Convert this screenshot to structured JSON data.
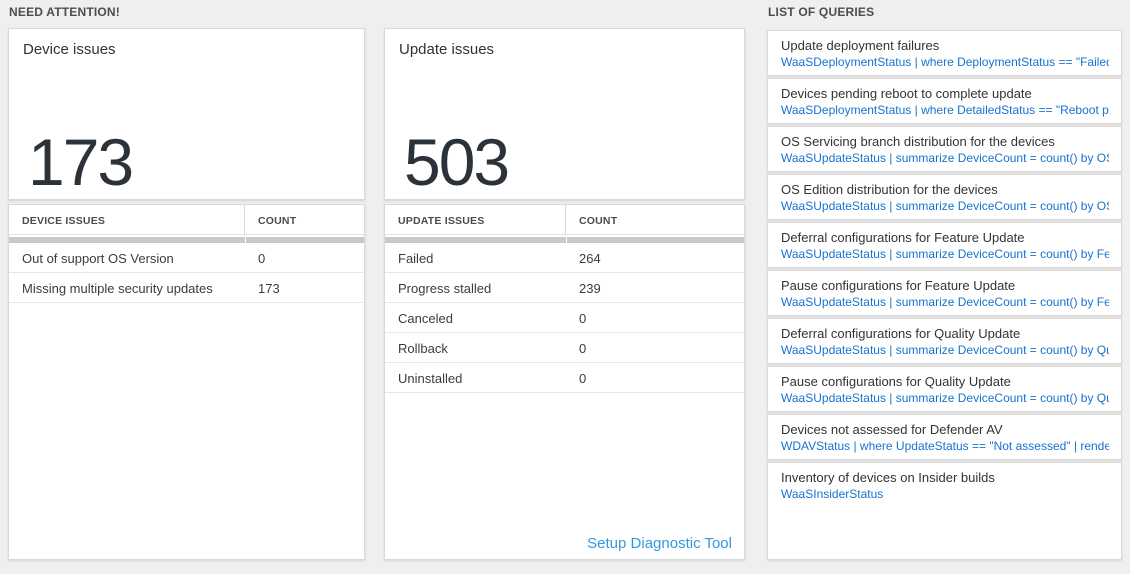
{
  "sections": {
    "need_attention": "NEED ATTENTION!",
    "list_of_queries": "LIST OF QUERIES"
  },
  "device_card": {
    "title": "Device issues",
    "count": "173"
  },
  "update_card": {
    "title": "Update issues",
    "count": "503"
  },
  "device_table": {
    "columns": [
      "DEVICE ISSUES",
      "COUNT"
    ],
    "rows": [
      {
        "label": "Out of support OS Version",
        "count": "0"
      },
      {
        "label": "Missing multiple security updates",
        "count": "173"
      }
    ]
  },
  "update_table": {
    "columns": [
      "UPDATE ISSUES",
      "COUNT"
    ],
    "rows": [
      {
        "label": "Failed",
        "count": "264"
      },
      {
        "label": "Progress stalled",
        "count": "239"
      },
      {
        "label": "Canceled",
        "count": "0"
      },
      {
        "label": "Rollback",
        "count": "0"
      },
      {
        "label": "Uninstalled",
        "count": "0"
      }
    ],
    "link": "Setup Diagnostic Tool"
  },
  "queries": [
    {
      "title": "Update deployment failures",
      "query": "WaaSDeploymentStatus | where DeploymentStatus == \"Failed\" |..."
    },
    {
      "title": "Devices pending reboot to complete update",
      "query": "WaaSDeploymentStatus | where DetailedStatus == \"Reboot pend..."
    },
    {
      "title": "OS Servicing branch distribution for the devices",
      "query": "WaaSUpdateStatus | summarize DeviceCount = count() by OSSer..."
    },
    {
      "title": "OS Edition distribution for the devices",
      "query": "WaaSUpdateStatus | summarize DeviceCount = count() by OSEdit..."
    },
    {
      "title": "Deferral configurations for Feature Update",
      "query": "WaaSUpdateStatus | summarize DeviceCount = count() by Featur..."
    },
    {
      "title": "Pause configurations for Feature Update",
      "query": "WaaSUpdateStatus | summarize DeviceCount = count() by Featur..."
    },
    {
      "title": "Deferral configurations for Quality Update",
      "query": "WaaSUpdateStatus | summarize DeviceCount = count() by Qualit..."
    },
    {
      "title": "Pause configurations for Quality Update",
      "query": "WaaSUpdateStatus | summarize DeviceCount = count() by Qualit..."
    },
    {
      "title": "Devices not assessed for Defender AV",
      "query": "WDAVStatus | where UpdateStatus == \"Not assessed\" | render ta..."
    },
    {
      "title": "Inventory of devices on Insider builds",
      "query": "WaaSInsiderStatus"
    }
  ],
  "colors": {
    "query_link": "#1673d1",
    "action_link": "#3399dd",
    "big_number": "#2b3239"
  }
}
